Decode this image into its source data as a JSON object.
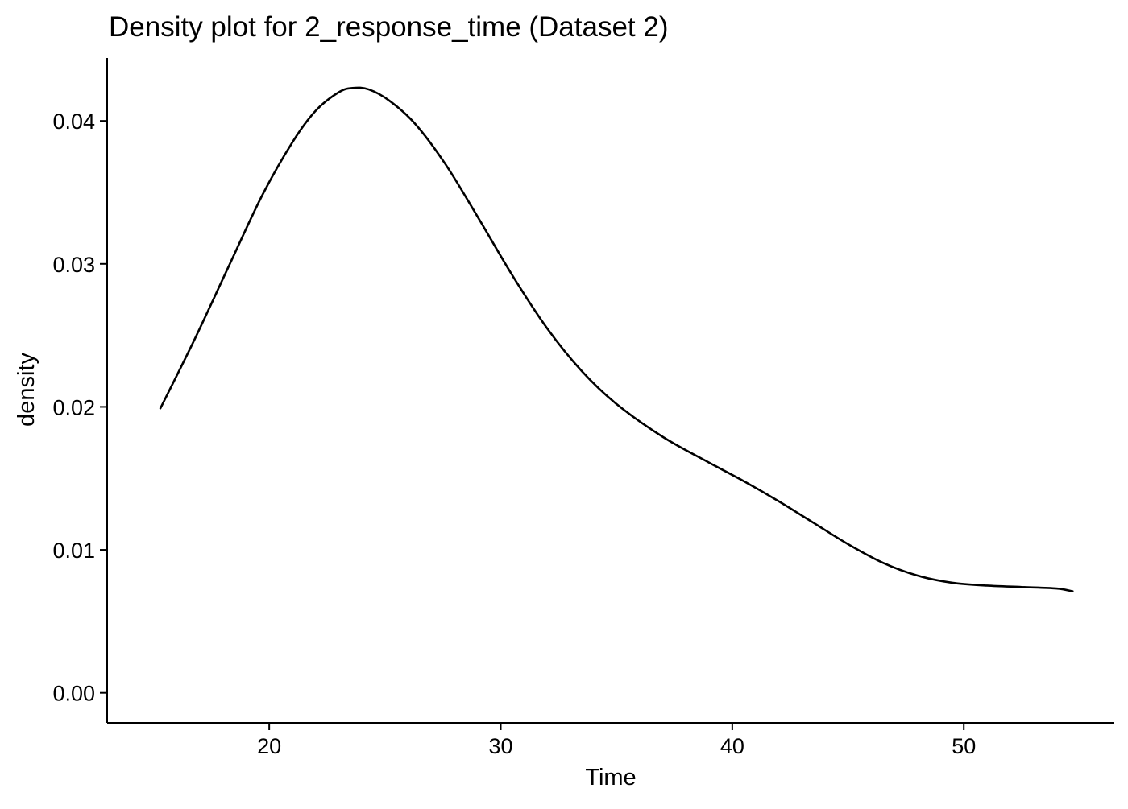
{
  "chart_data": {
    "type": "line",
    "title": "Density plot for 2_response_time (Dataset 2)",
    "xlabel": "Time",
    "ylabel": "density",
    "xlim": [
      13,
      56.5
    ],
    "ylim": [
      -0.0021,
      0.0444
    ],
    "x_ticks": [
      20,
      30,
      40,
      50
    ],
    "y_ticks": [
      0.0,
      0.01,
      0.02,
      0.03,
      0.04
    ],
    "x_tick_labels": [
      "20",
      "30",
      "40",
      "50"
    ],
    "y_tick_labels": [
      "0.00",
      "0.01",
      "0.02",
      "0.03",
      "0.04"
    ],
    "grid": false,
    "legend": "none",
    "line_color": "#000000",
    "series": [
      {
        "x": [
          15.3,
          16.8,
          18.3,
          19.7,
          21.0,
          22.0,
          23.0,
          23.6,
          24.3,
          25.2,
          26.3,
          27.6,
          29.0,
          30.5,
          32.0,
          33.5,
          35.0,
          37.0,
          39.0,
          40.5,
          42.0,
          43.5,
          45.0,
          46.5,
          48.0,
          49.5,
          51.0,
          52.5,
          54.0,
          54.7
        ],
        "values": [
          0.0199,
          0.0248,
          0.03,
          0.0348,
          0.0385,
          0.0407,
          0.042,
          0.0423,
          0.0422,
          0.0414,
          0.0398,
          0.037,
          0.0333,
          0.0292,
          0.0255,
          0.0225,
          0.0202,
          0.0179,
          0.0161,
          0.0148,
          0.0134,
          0.0119,
          0.0104,
          0.0091,
          0.0082,
          0.0077,
          0.0075,
          0.0074,
          0.0073,
          0.0071
        ]
      }
    ]
  }
}
